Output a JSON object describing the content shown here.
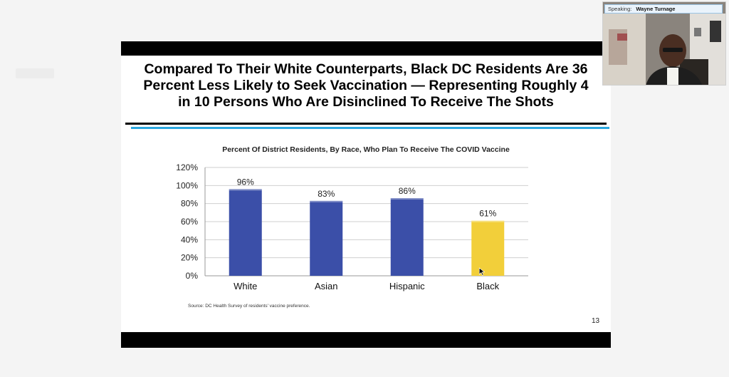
{
  "slide": {
    "headline_lines": [
      "Compared To Their White Counterparts, Black DC Residents Are 36",
      "Percent Less Likely to Seek Vaccination — Representing Roughly 4",
      "in 10 Persons Who Are Disinclined To Receive The Shots"
    ],
    "source": "Source: DC Health Survey of residents' vaccine preference.",
    "page_number": "13"
  },
  "speaker": {
    "label": "Speaking:",
    "name": "Wayne Turnage"
  },
  "chart_data": {
    "type": "bar",
    "title": "Percent Of District Residents, By Race, Who Plan To Receive The COVID Vaccine",
    "categories": [
      "White",
      "Asian",
      "Hispanic",
      "Black"
    ],
    "values": [
      96,
      83,
      86,
      61
    ],
    "data_labels": [
      "96%",
      "83%",
      "86%",
      "61%"
    ],
    "ylim": [
      0,
      120
    ],
    "yticks": [
      0,
      20,
      40,
      60,
      80,
      100,
      120
    ],
    "ytick_labels": [
      "0%",
      "20%",
      "40%",
      "60%",
      "80%",
      "100%",
      "120%"
    ],
    "xlabel": "",
    "ylabel": "",
    "grid": true,
    "colors": [
      "#3b4fa8",
      "#3b4fa8",
      "#3b4fa8",
      "#f2cf3a"
    ],
    "highlight_color": "#f2cf3a",
    "bar_color": "#3b4fa8"
  }
}
